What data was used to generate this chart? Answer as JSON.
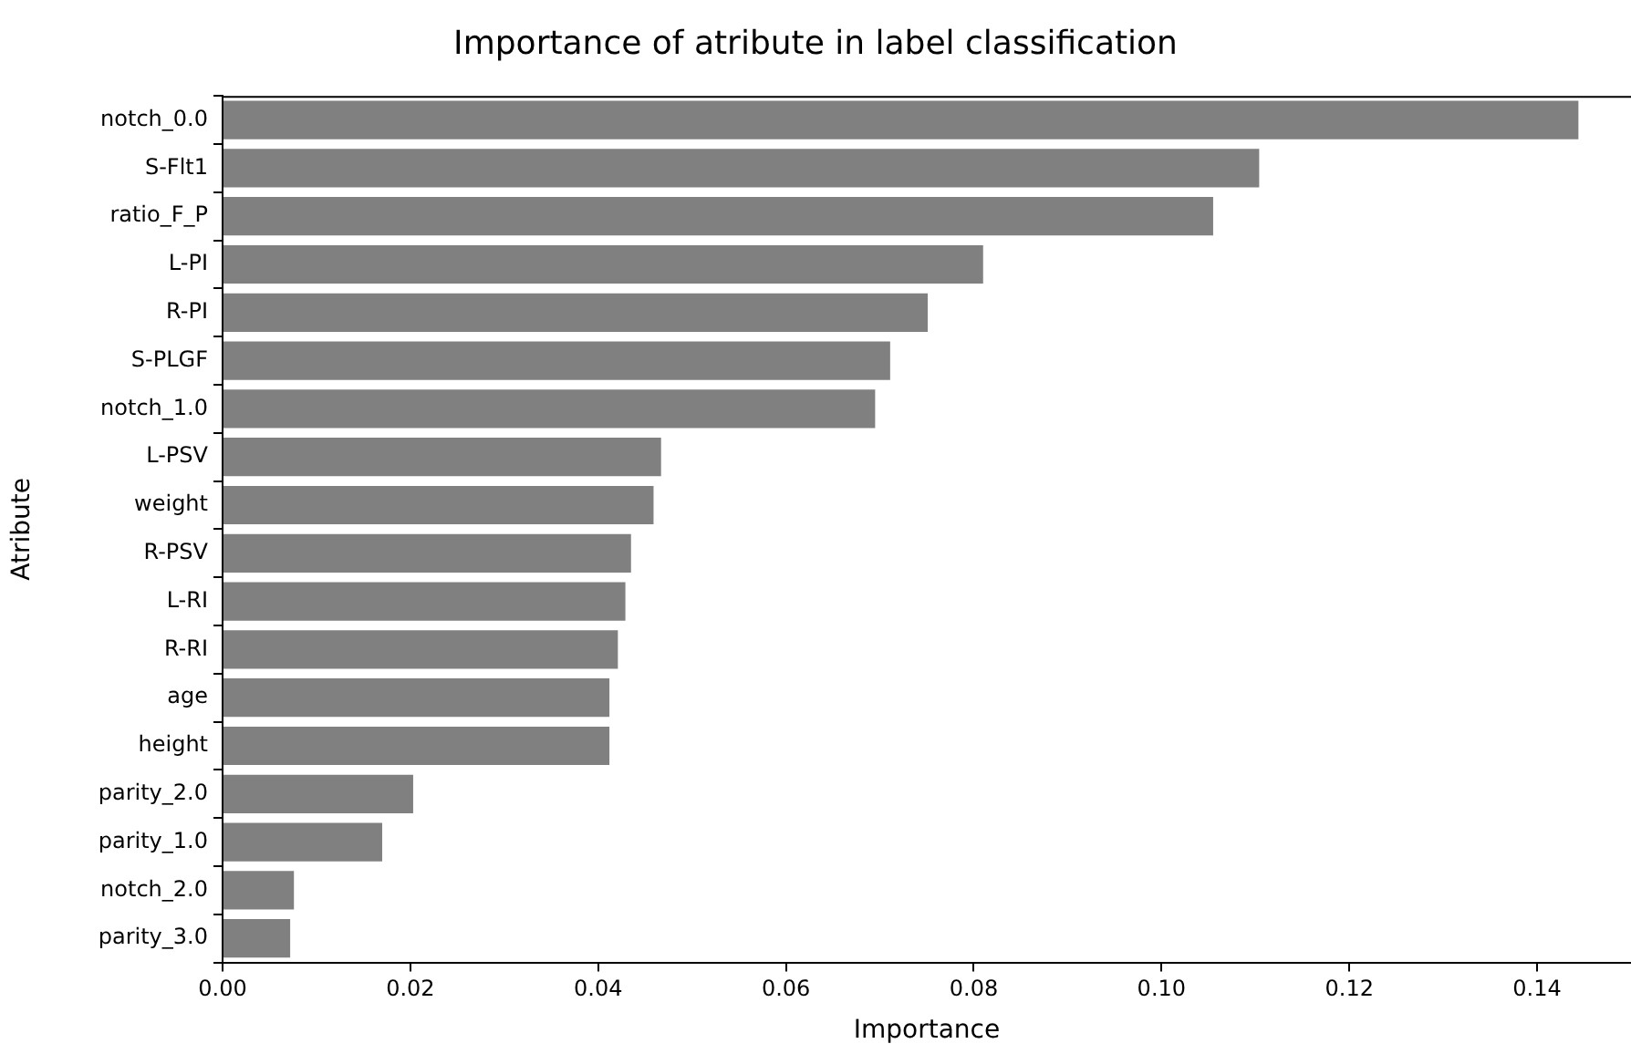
{
  "chart_data": {
    "type": "bar",
    "orientation": "horizontal",
    "title": "Importance of atribute in label classification",
    "xlabel": "Importance",
    "ylabel": "Atribute",
    "categories": [
      "notch_0.0",
      "S-Flt1",
      "ratio_F_P",
      "L-PI",
      "R-PI",
      "S-PLGF",
      "notch_1.0",
      "L-PSV",
      "weight",
      "R-PSV",
      "L-RI",
      "R-RI",
      "age",
      "height",
      "parity_2.0",
      "parity_1.0",
      "notch_2.0",
      "parity_3.0"
    ],
    "values": [
      0.1444,
      0.1104,
      0.1055,
      0.081,
      0.0751,
      0.0711,
      0.0695,
      0.0467,
      0.0459,
      0.0435,
      0.0429,
      0.0421,
      0.0412,
      0.0412,
      0.0203,
      0.017,
      0.0076,
      0.0072
    ],
    "color": "#808080",
    "xlim": [
      0,
      0.15
    ],
    "xticks": [
      {
        "value": 0,
        "label": "0.00"
      },
      {
        "value": 0.02,
        "label": "0.02"
      },
      {
        "value": 0.04,
        "label": "0.04"
      },
      {
        "value": 0.06,
        "label": "0.06"
      },
      {
        "value": 0.08,
        "label": "0.08"
      },
      {
        "value": 0.1,
        "label": "0.10"
      },
      {
        "value": 0.12,
        "label": "0.12"
      },
      {
        "value": 0.14,
        "label": "0.14"
      }
    ],
    "grid": false,
    "legend": false
  }
}
